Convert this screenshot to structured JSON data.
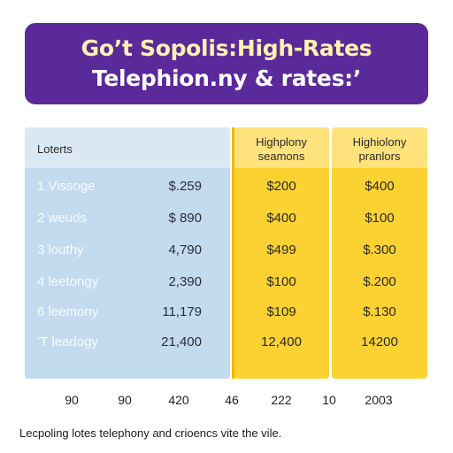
{
  "title": {
    "line1": "Go’t Sopolis:High-Rates",
    "line2": "Telephion.ny & rates:’"
  },
  "colors": {
    "banner": "#5b2a9a",
    "lots_column": "#c4daee",
    "high_columns": "#fbd232"
  },
  "chart_data": {
    "type": "table",
    "columns": [
      "Loterts",
      "",
      "Highplony seamons",
      "Highiolony pranlors"
    ],
    "rows": [
      {
        "label": "1 Vissoge",
        "values": [
          "$.259",
          "$200",
          "$400"
        ]
      },
      {
        "label": "2 weuds",
        "values": [
          "$ 890",
          "$400",
          "$100"
        ]
      },
      {
        "label": "3 louthy",
        "values": [
          "4,790",
          "$499",
          "$.300"
        ]
      },
      {
        "label": "4 leetongy",
        "values": [
          "2,390",
          "$100",
          "$.200"
        ]
      },
      {
        "label": "6 leemony",
        "values": [
          "11,179",
          "$109",
          "$.130"
        ]
      },
      {
        "label": "’T leadogy",
        "values": [
          "21,400",
          "12,400",
          "14200"
        ]
      }
    ],
    "footer": [
      "90",
      "90",
      "420",
      "46",
      "222",
      "10",
      "2003"
    ]
  },
  "caption": "Lecpoling lotes telephony and crioencs vite the vile."
}
